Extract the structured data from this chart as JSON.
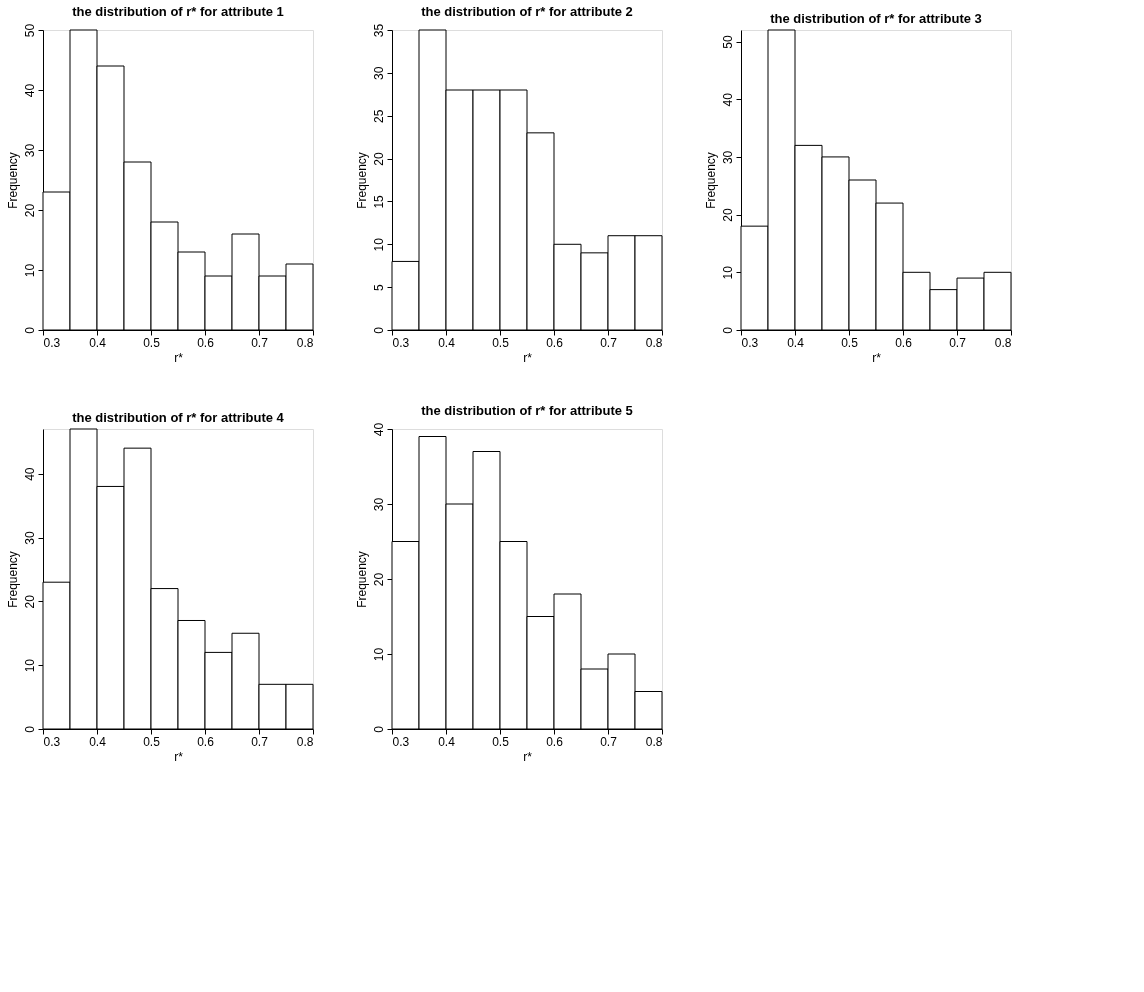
{
  "chart_data": [
    {
      "type": "histogram",
      "title": "the distribution of r* for attribute 1",
      "xlabel": "r*",
      "ylabel": "Frequency",
      "bins": [
        0.3,
        0.35,
        0.4,
        0.45,
        0.5,
        0.55,
        0.6,
        0.65,
        0.7,
        0.75,
        0.8
      ],
      "values": [
        23,
        50,
        44,
        28,
        18,
        13,
        9,
        16,
        9,
        11
      ],
      "color": "#ffffff",
      "xlim": [
        0.3,
        0.8
      ],
      "xticks": [
        0.3,
        0.4,
        0.5,
        0.6,
        0.7,
        0.8
      ],
      "ylim": [
        0,
        50
      ],
      "yticks": [
        0,
        10,
        20,
        30,
        40,
        50
      ],
      "grid": false
    },
    {
      "type": "histogram",
      "title": "the distribution of r* for attribute 2",
      "xlabel": "r*",
      "ylabel": "Frequency",
      "bins": [
        0.3,
        0.35,
        0.4,
        0.45,
        0.5,
        0.55,
        0.6,
        0.65,
        0.7,
        0.75,
        0.8
      ],
      "values": [
        8,
        35,
        28,
        28,
        28,
        23,
        10,
        9,
        11,
        11
      ],
      "color": "#ffffff",
      "xlim": [
        0.3,
        0.8
      ],
      "xticks": [
        0.3,
        0.4,
        0.5,
        0.6,
        0.7,
        0.8
      ],
      "ylim": [
        0,
        35
      ],
      "yticks": [
        0,
        5,
        10,
        15,
        20,
        25,
        30,
        35
      ],
      "grid": false
    },
    {
      "type": "histogram",
      "title": "the distribution of r* for attribute 3",
      "xlabel": "r*",
      "ylabel": "Frequency",
      "bins": [
        0.3,
        0.35,
        0.4,
        0.45,
        0.5,
        0.55,
        0.6,
        0.65,
        0.7,
        0.75,
        0.8
      ],
      "values": [
        18,
        52,
        32,
        30,
        26,
        22,
        10,
        7,
        9,
        10
      ],
      "color": "#ffffff",
      "xlim": [
        0.3,
        0.8
      ],
      "xticks": [
        0.3,
        0.4,
        0.5,
        0.6,
        0.7,
        0.8
      ],
      "ylim": [
        0,
        52
      ],
      "yticks": [
        0,
        10,
        20,
        30,
        40,
        50
      ],
      "grid": false
    },
    {
      "type": "histogram",
      "title": "the distribution of r* for attribute 4",
      "xlabel": "r*",
      "ylabel": "Frequency",
      "bins": [
        0.3,
        0.35,
        0.4,
        0.45,
        0.5,
        0.55,
        0.6,
        0.65,
        0.7,
        0.75,
        0.8
      ],
      "values": [
        23,
        47,
        38,
        44,
        22,
        17,
        12,
        15,
        7,
        7
      ],
      "color": "#ffffff",
      "xlim": [
        0.3,
        0.8
      ],
      "xticks": [
        0.3,
        0.4,
        0.5,
        0.6,
        0.7,
        0.8
      ],
      "ylim": [
        0,
        47
      ],
      "yticks": [
        0,
        10,
        20,
        30,
        40
      ],
      "grid": false
    },
    {
      "type": "histogram",
      "title": "the distribution of r* for attribute 5",
      "xlabel": "r*",
      "ylabel": "Frequency",
      "bins": [
        0.3,
        0.35,
        0.4,
        0.45,
        0.5,
        0.55,
        0.6,
        0.65,
        0.7,
        0.75,
        0.8
      ],
      "values": [
        25,
        39,
        30,
        37,
        25,
        15,
        18,
        8,
        10,
        5
      ],
      "color": "#ffffff",
      "xlim": [
        0.3,
        0.8
      ],
      "xticks": [
        0.3,
        0.4,
        0.5,
        0.6,
        0.7,
        0.8
      ],
      "ylim": [
        0,
        40
      ],
      "yticks": [
        0,
        10,
        20,
        30,
        40
      ],
      "grid": false
    }
  ]
}
